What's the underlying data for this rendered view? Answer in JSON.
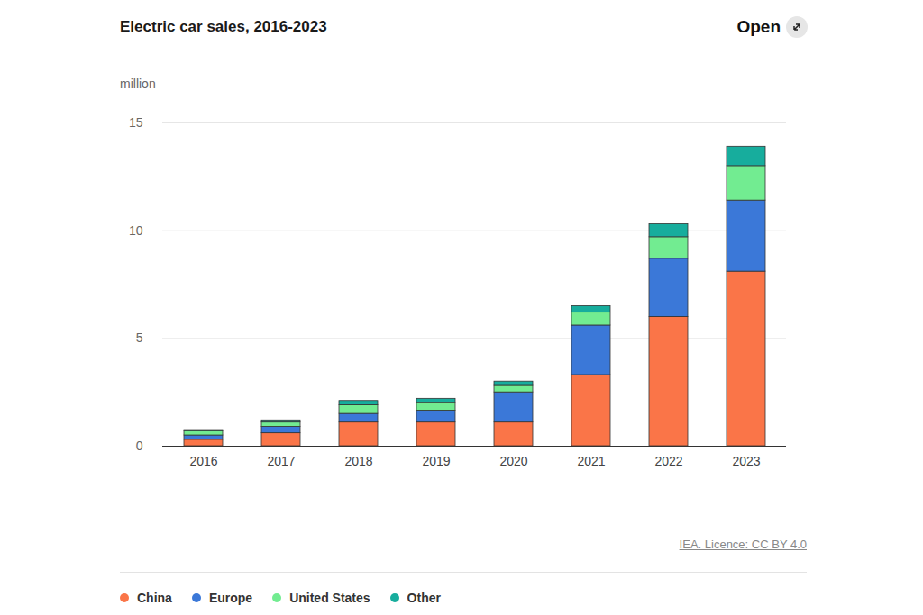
{
  "chart_data": {
    "type": "bar",
    "title": "Electric car sales, 2016-2023",
    "link_text": "Open",
    "ylabel": "million",
    "source": "IEA. Licence: CC BY 4.0",
    "categories": [
      "2016",
      "2017",
      "2018",
      "2019",
      "2020",
      "2021",
      "2022",
      "2023"
    ],
    "series": [
      {
        "name": "China",
        "color": "#fa7548",
        "values": [
          0.3,
          0.6,
          1.1,
          1.1,
          1.1,
          3.3,
          6.0,
          8.1
        ]
      },
      {
        "name": "Europe",
        "color": "#3b78d8",
        "values": [
          0.2,
          0.3,
          0.4,
          0.55,
          1.4,
          2.3,
          2.7,
          3.3
        ]
      },
      {
        "name": "United States",
        "color": "#72ec91",
        "values": [
          0.2,
          0.2,
          0.4,
          0.35,
          0.3,
          0.6,
          1.0,
          1.6
        ]
      },
      {
        "name": "Other",
        "color": "#17ad9d",
        "values": [
          0.05,
          0.1,
          0.2,
          0.2,
          0.2,
          0.3,
          0.6,
          0.9
        ]
      }
    ],
    "stacked": true,
    "ylim": [
      0,
      15
    ],
    "yticks": [
      0,
      5,
      10,
      15
    ],
    "grid": true,
    "legend": "bottom-left"
  }
}
